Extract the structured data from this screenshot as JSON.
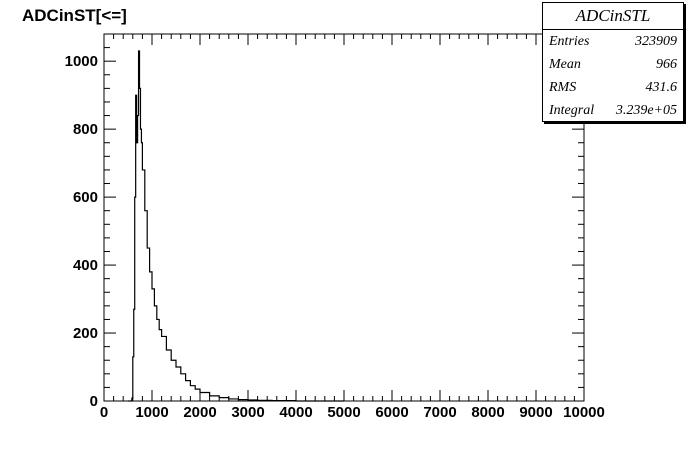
{
  "chart_data": {
    "type": "histogram",
    "title": "ADCinST[<=]",
    "xlabel": "",
    "ylabel": "",
    "xlim": [
      0,
      10000
    ],
    "ylim": [
      0,
      1080
    ],
    "x_ticks": [
      0,
      1000,
      2000,
      3000,
      4000,
      5000,
      6000,
      7000,
      8000,
      9000,
      10000
    ],
    "y_ticks": [
      0,
      200,
      400,
      600,
      800,
      1000
    ],
    "series": [
      {
        "x": [
          500,
          540,
          580,
          600,
          620,
          640,
          660,
          680,
          700,
          720,
          740,
          760,
          780,
          800,
          850,
          900,
          950,
          1000,
          1050,
          1100,
          1150,
          1200,
          1300,
          1400,
          1500,
          1600,
          1700,
          1800,
          1900,
          2000,
          2200,
          2400,
          2600,
          2800,
          3000,
          3200,
          3500,
          3800,
          4000,
          4500,
          5000
        ],
        "y": [
          0,
          0,
          8,
          130,
          270,
          600,
          900,
          760,
          840,
          1030,
          920,
          800,
          760,
          680,
          560,
          450,
          380,
          330,
          280,
          240,
          210,
          190,
          150,
          120,
          100,
          80,
          60,
          45,
          35,
          25,
          15,
          10,
          6,
          4,
          3,
          2,
          1,
          1,
          0,
          0,
          0
        ]
      }
    ]
  },
  "stats": {
    "name": "ADCinSTL",
    "rows": [
      {
        "label": "Entries",
        "value": "323909"
      },
      {
        "label": "Mean",
        "value": "966"
      },
      {
        "label": "RMS",
        "value": "431.6"
      },
      {
        "label": "Integral",
        "value": "3.239e+05"
      }
    ]
  }
}
